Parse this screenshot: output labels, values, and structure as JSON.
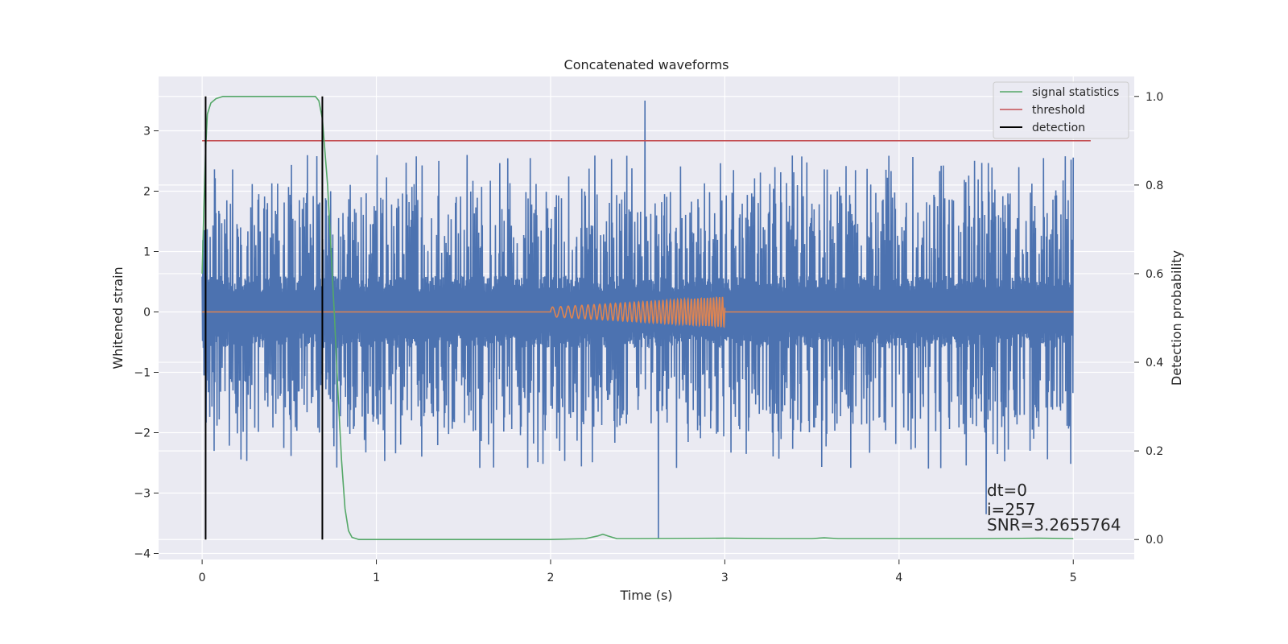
{
  "chart_data": {
    "type": "line",
    "title": "Concatenated waveforms",
    "xlabel": "Time (s)",
    "ylabel": "Whitened strain",
    "ylabel_right": "Detection probability",
    "xlim": [
      -0.25,
      5.35
    ],
    "ylim": [
      -4.1,
      3.9
    ],
    "ylim_right": [
      -0.045,
      1.045
    ],
    "x_ticks": [
      0,
      1,
      2,
      3,
      4,
      5
    ],
    "y_ticks": [
      -4,
      -3,
      -2,
      -1,
      0,
      1,
      2,
      3
    ],
    "y_ticks_right": [
      0.0,
      0.2,
      0.4,
      0.6,
      0.8,
      1.0
    ],
    "x_tick_labels": [
      "0",
      "1",
      "2",
      "3",
      "4",
      "5"
    ],
    "y_tick_labels": [
      "−4",
      "−3",
      "−2",
      "−1",
      "0",
      "1",
      "2",
      "3"
    ],
    "y_tick_labels_right": [
      "0.0",
      "0.2",
      "0.4",
      "0.6",
      "0.8",
      "1.0"
    ],
    "grid": true,
    "legend_position": "top-right",
    "colors": {
      "strain": "#4c72b0",
      "injection": "#dd8452",
      "signal_statistics": "#55a868",
      "threshold": "#c44e52",
      "detection": "#000000",
      "background": "#eaeaf2"
    },
    "series": [
      {
        "name": "signal statistics",
        "axis": "right",
        "x": [
          0.0,
          0.01,
          0.02,
          0.03,
          0.05,
          0.08,
          0.12,
          0.2,
          0.4,
          0.6,
          0.65,
          0.67,
          0.69,
          0.7,
          0.72,
          0.74,
          0.76,
          0.78,
          0.8,
          0.82,
          0.84,
          0.86,
          0.9,
          1.0,
          1.5,
          2.0,
          2.2,
          2.27,
          2.3,
          2.33,
          2.38,
          2.5,
          3.0,
          3.3,
          3.5,
          3.57,
          3.65,
          4.0,
          4.5,
          4.8,
          5.0
        ],
        "y": [
          0.6,
          0.75,
          0.88,
          0.96,
          0.985,
          0.995,
          1.0,
          1.0,
          1.0,
          1.0,
          1.0,
          0.99,
          0.95,
          0.9,
          0.8,
          0.65,
          0.5,
          0.33,
          0.18,
          0.07,
          0.02,
          0.005,
          0.0,
          0.0,
          0.0,
          0.0,
          0.002,
          0.008,
          0.012,
          0.008,
          0.002,
          0.002,
          0.003,
          0.002,
          0.002,
          0.004,
          0.002,
          0.002,
          0.002,
          0.003,
          0.002
        ]
      },
      {
        "name": "threshold",
        "axis": "right",
        "x": [
          0.0,
          5.1
        ],
        "y": [
          0.9,
          0.9
        ]
      },
      {
        "name": "detection",
        "axis": "right",
        "x": [
          0.02,
          0.69
        ],
        "y_range": [
          0.0,
          1.0
        ]
      }
    ],
    "strain_noise": {
      "x_range": [
        0.0,
        5.0
      ],
      "core_amplitude": 0.6,
      "typical_peak": 2.0,
      "max_peak": 3.5,
      "min_peak": -3.75
    },
    "injection": {
      "x_range": [
        2.0,
        3.0
      ],
      "amplitude_start": 0.08,
      "amplitude_end": 0.25,
      "frequency_start_hz": 20,
      "frequency_end_hz": 60
    },
    "annotations": [
      "dt=0",
      "i=257",
      "SNR=3.2655764"
    ]
  }
}
